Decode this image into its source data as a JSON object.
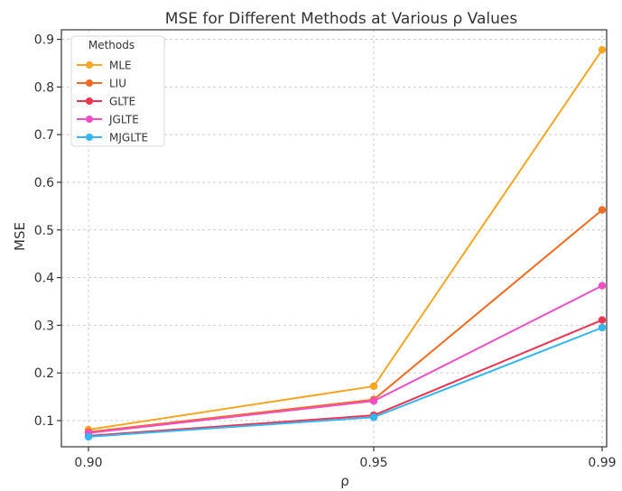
{
  "chart_data": {
    "type": "line",
    "title": "MSE for Different Methods at Various ρ Values",
    "xlabel": "ρ",
    "ylabel": "MSE",
    "categories": [
      "0.90",
      "0.95",
      "0.99"
    ],
    "ylim": [
      0.045,
      0.92
    ],
    "yticks": [
      "0.1",
      "0.2",
      "0.3",
      "0.4",
      "0.5",
      "0.6",
      "0.7",
      "0.8",
      "0.9"
    ],
    "grid": true,
    "legend": {
      "title": "Methods",
      "placement": "top-left"
    },
    "series": [
      {
        "name": "MLE",
        "color": "#f5a623",
        "values": [
          0.081,
          0.172,
          0.878
        ]
      },
      {
        "name": "LIU",
        "color": "#f26b21",
        "values": [
          0.076,
          0.144,
          0.542
        ]
      },
      {
        "name": "GLTE",
        "color": "#ee3450",
        "values": [
          0.068,
          0.111,
          0.311
        ]
      },
      {
        "name": "JGLTE",
        "color": "#f04fc4",
        "values": [
          0.074,
          0.141,
          0.383
        ]
      },
      {
        "name": "MJGLTE",
        "color": "#35b6f0",
        "values": [
          0.066,
          0.107,
          0.295
        ]
      }
    ]
  }
}
